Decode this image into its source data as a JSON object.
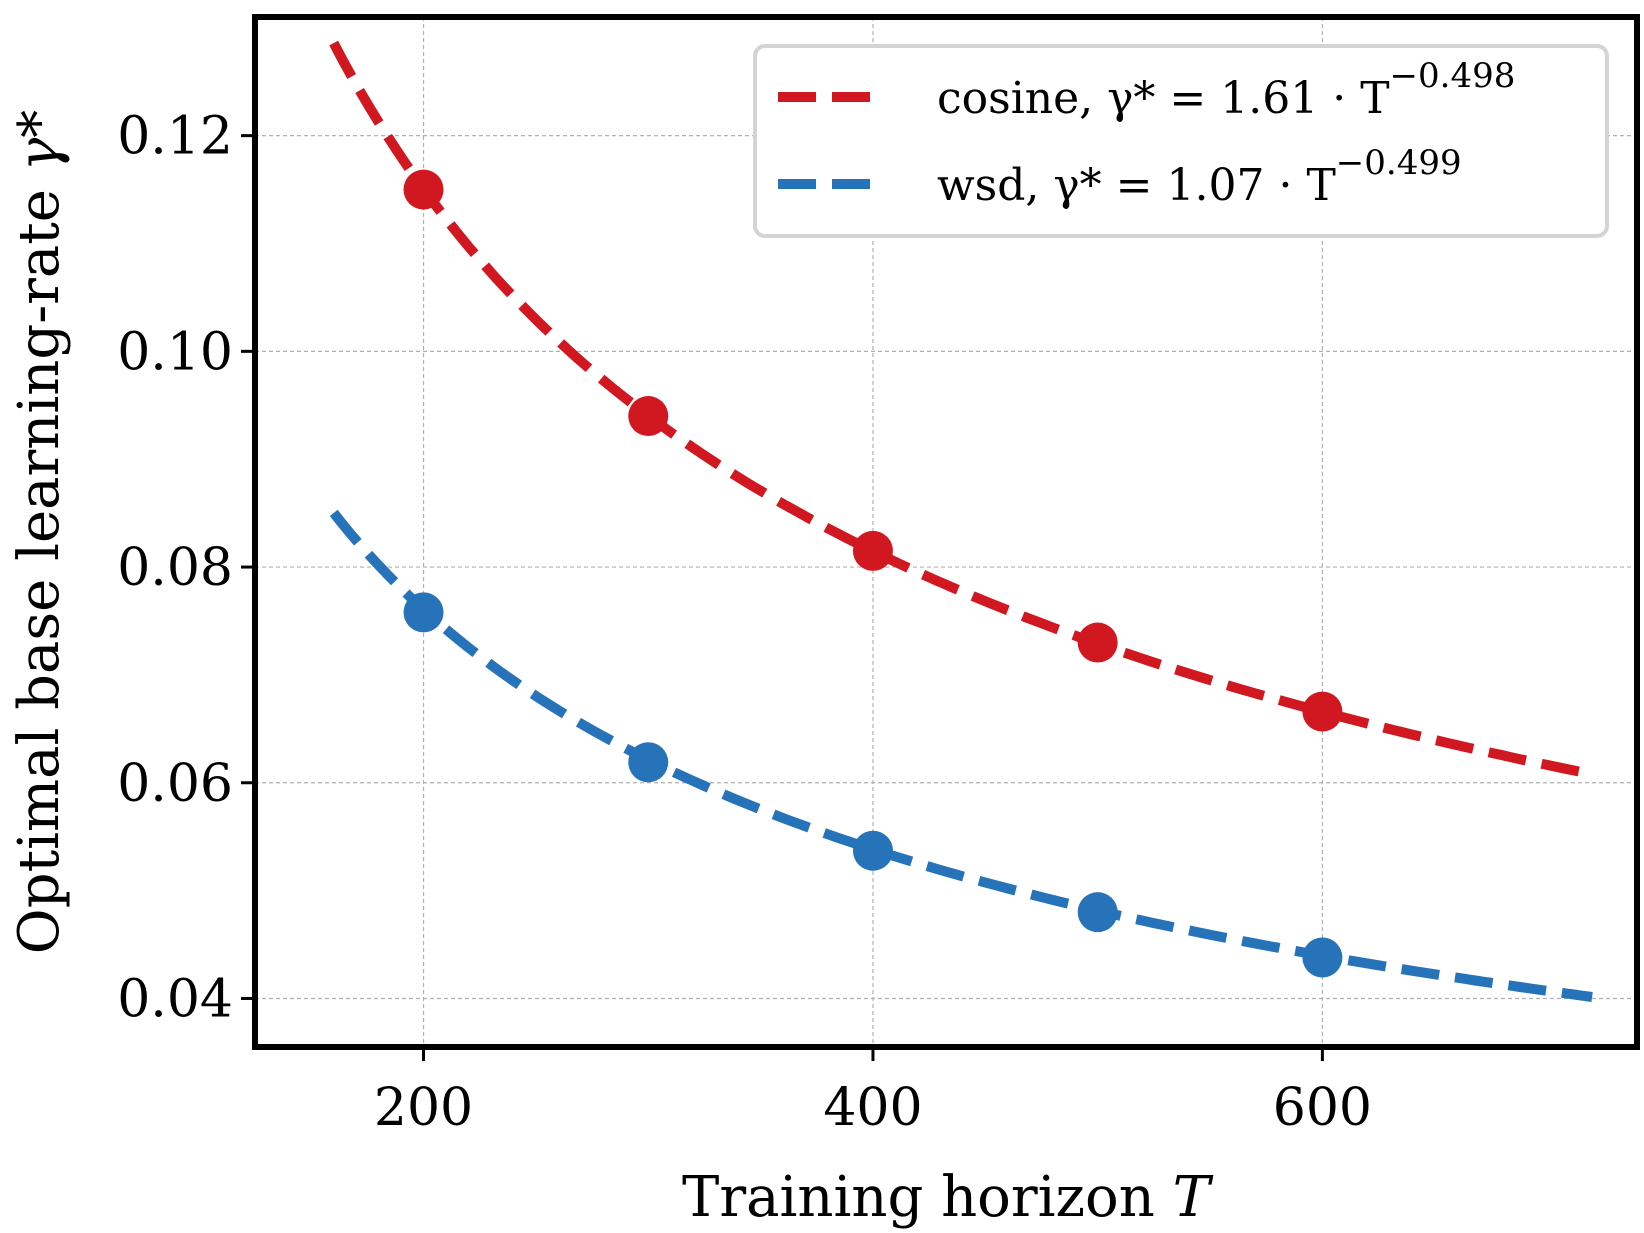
{
  "chart_data": {
    "type": "line",
    "xlabel": "Training horizon",
    "xlabel_var": "T",
    "ylabel": "Optimal base learning-rate",
    "ylabel_var": "γ*",
    "xlim": [
      125,
      740
    ],
    "ylim": [
      0.0355,
      0.131
    ],
    "xticks": [
      200,
      400,
      600
    ],
    "yticks": [
      0.04,
      0.06,
      0.08,
      0.1,
      0.12
    ],
    "ytick_labels": [
      "0.04",
      "0.06",
      "0.08",
      "0.10",
      "0.12"
    ],
    "grid": true,
    "legend_position": "top-right",
    "series": [
      {
        "name": "cosine",
        "legend_label": "cosine, γ* = 1.61 · T",
        "exponent_label": "−0.498",
        "color": "#d1171f",
        "fit": {
          "coef": 1.61,
          "exponent": -0.498,
          "x_range": [
            160,
            720
          ]
        },
        "points": {
          "x": [
            200,
            300,
            400,
            500,
            600
          ],
          "y": [
            0.115,
            0.094,
            0.0815,
            0.073,
            0.0666
          ]
        }
      },
      {
        "name": "wsd",
        "legend_label": "wsd, γ* = 1.07 · T",
        "exponent_label": "−0.499",
        "color": "#2673ba",
        "fit": {
          "coef": 1.07,
          "exponent": -0.499,
          "x_range": [
            160,
            720
          ]
        },
        "points": {
          "x": [
            200,
            300,
            400,
            500,
            600
          ],
          "y": [
            0.0758,
            0.0619,
            0.0537,
            0.048,
            0.0438
          ]
        }
      }
    ]
  }
}
